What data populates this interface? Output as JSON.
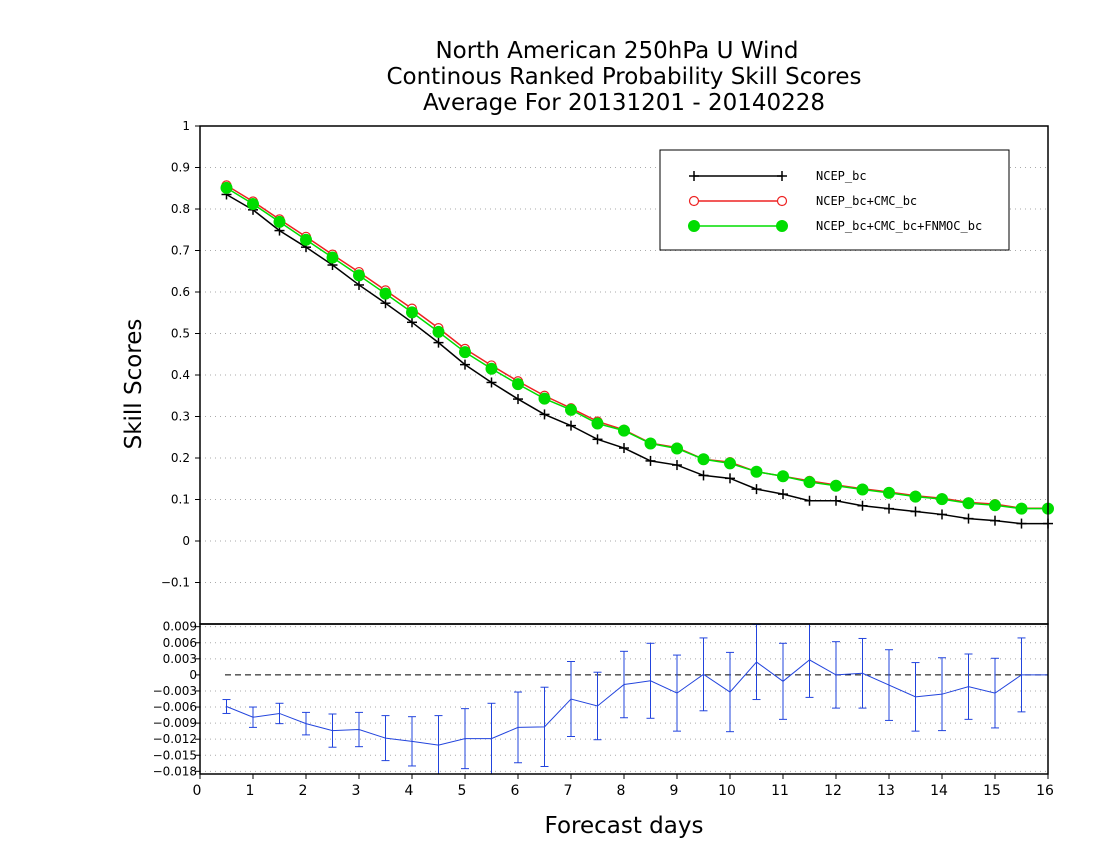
{
  "chart_data": [
    {
      "type": "line",
      "panel": "main",
      "title_lines": [
        "North American 250hPa U Wind",
        "Continous Ranked Probability Skill Scores",
        "Average For 20131201 - 20140228"
      ],
      "ylabel": "Skill Scores",
      "xlabel": "Forecast days",
      "xlim": [
        0,
        16
      ],
      "ylim": [
        -0.2,
        1
      ],
      "yticks": [
        -0.1,
        0,
        0.1,
        0.2,
        0.3,
        0.4,
        0.5,
        0.6,
        0.7,
        0.8,
        0.9,
        1
      ],
      "ytick_labels": [
        "−0.1",
        "0",
        "0.1",
        "0.2",
        "0.3",
        "0.4",
        "0.5",
        "0.6",
        "0.7",
        "0.8",
        "0.9",
        "1"
      ],
      "grid": true,
      "legend_position": "top-right",
      "x": [
        0.5,
        1,
        1.5,
        2,
        2.5,
        3,
        3.5,
        4,
        4.5,
        5,
        5.5,
        6,
        6.5,
        7,
        7.5,
        8,
        8.5,
        9,
        9.5,
        10,
        10.5,
        11,
        11.5,
        12,
        12.5,
        13,
        13.5,
        14,
        14.5,
        15,
        15.5,
        16
      ],
      "series": [
        {
          "name": "NCEP_bc",
          "color": "#000000",
          "marker": "plus",
          "values": [
            0.835,
            0.798,
            0.748,
            0.708,
            0.665,
            0.617,
            0.573,
            0.527,
            0.478,
            0.425,
            0.382,
            0.342,
            0.305,
            0.278,
            0.245,
            0.224,
            0.193,
            0.183,
            0.158,
            0.151,
            0.125,
            0.113,
            0.097,
            0.097,
            0.085,
            0.078,
            0.071,
            0.064,
            0.054,
            0.049,
            0.042,
            0.042
          ]
        },
        {
          "name": "NCEP_bc+CMC_bc",
          "color": "#ee2222",
          "marker": "open-circle",
          "values": [
            0.857,
            0.818,
            0.775,
            0.733,
            0.69,
            0.648,
            0.604,
            0.56,
            0.513,
            0.463,
            0.423,
            0.385,
            0.35,
            0.32,
            0.288,
            0.268,
            0.236,
            0.225,
            0.197,
            0.19,
            0.167,
            0.156,
            0.145,
            0.135,
            0.126,
            0.118,
            0.109,
            0.103,
            0.093,
            0.089,
            0.079,
            0.079
          ]
        },
        {
          "name": "NCEP_bc+CMC_bc+FNMOC_bc",
          "color": "#00dd00",
          "marker": "filled-circle",
          "values": [
            0.851,
            0.812,
            0.769,
            0.726,
            0.683,
            0.64,
            0.596,
            0.551,
            0.504,
            0.455,
            0.415,
            0.378,
            0.343,
            0.316,
            0.283,
            0.266,
            0.235,
            0.223,
            0.197,
            0.187,
            0.167,
            0.156,
            0.142,
            0.133,
            0.124,
            0.116,
            0.107,
            0.101,
            0.091,
            0.086,
            0.078,
            0.078
          ]
        }
      ]
    },
    {
      "type": "line",
      "panel": "difference",
      "xlim": [
        0,
        16
      ],
      "ylim": [
        -0.0185,
        0.0095
      ],
      "yticks": [
        -0.018,
        -0.015,
        -0.012,
        -0.009,
        -0.006,
        -0.003,
        0,
        0.003,
        0.006,
        0.009
      ],
      "ytick_labels": [
        "−0.018",
        "−0.015",
        "−0.012",
        "−0.009",
        "−0.006",
        "−0.003",
        "0",
        "0.003",
        "0.006",
        "0.009"
      ],
      "xticks": [
        0,
        1,
        2,
        3,
        4,
        5,
        6,
        7,
        8,
        9,
        10,
        11,
        12,
        13,
        14,
        15,
        16
      ],
      "xtick_labels": [
        "0",
        "1",
        "2",
        "3",
        "4",
        "5",
        "6",
        "7",
        "8",
        "9",
        "10",
        "11",
        "12",
        "13",
        "14",
        "15",
        "16"
      ],
      "grid": true,
      "x": [
        0.5,
        1,
        1.5,
        2,
        2.5,
        3,
        3.5,
        4,
        4.5,
        5,
        5.5,
        6,
        6.5,
        7,
        7.5,
        8,
        8.5,
        9,
        9.5,
        10,
        10.5,
        11,
        11.5,
        12,
        12.5,
        13,
        13.5,
        14,
        14.5,
        15,
        15.5,
        16
      ],
      "series": [
        {
          "color": "#2244dd",
          "values": [
            -0.0059,
            -0.0079,
            -0.0072,
            -0.0091,
            -0.0104,
            -0.0102,
            -0.0118,
            -0.0124,
            -0.0131,
            -0.0119,
            -0.0119,
            -0.0098,
            -0.0097,
            -0.0045,
            -0.0058,
            -0.0018,
            -0.0011,
            -0.0034,
            0.0001,
            -0.0032,
            0.0024,
            -0.0012,
            0.0028,
            -0.0,
            0.0003,
            -0.0019,
            -0.0041,
            -0.0036,
            -0.0022,
            -0.0034,
            0.0,
            0.0
          ],
          "error": [
            0.0013,
            0.0019,
            0.0019,
            0.0021,
            0.0031,
            0.0032,
            0.0042,
            0.0046,
            0.0055,
            0.0056,
            0.0066,
            0.0066,
            0.0074,
            0.007,
            0.0063,
            0.0062,
            0.007,
            0.0071,
            0.0068,
            0.0074,
            0.007,
            0.0071,
            0.007,
            0.0062,
            0.0065,
            0.0066,
            0.0064,
            0.0068,
            0.0061,
            0.0065,
            0.0069,
            0.0
          ]
        }
      ]
    }
  ]
}
